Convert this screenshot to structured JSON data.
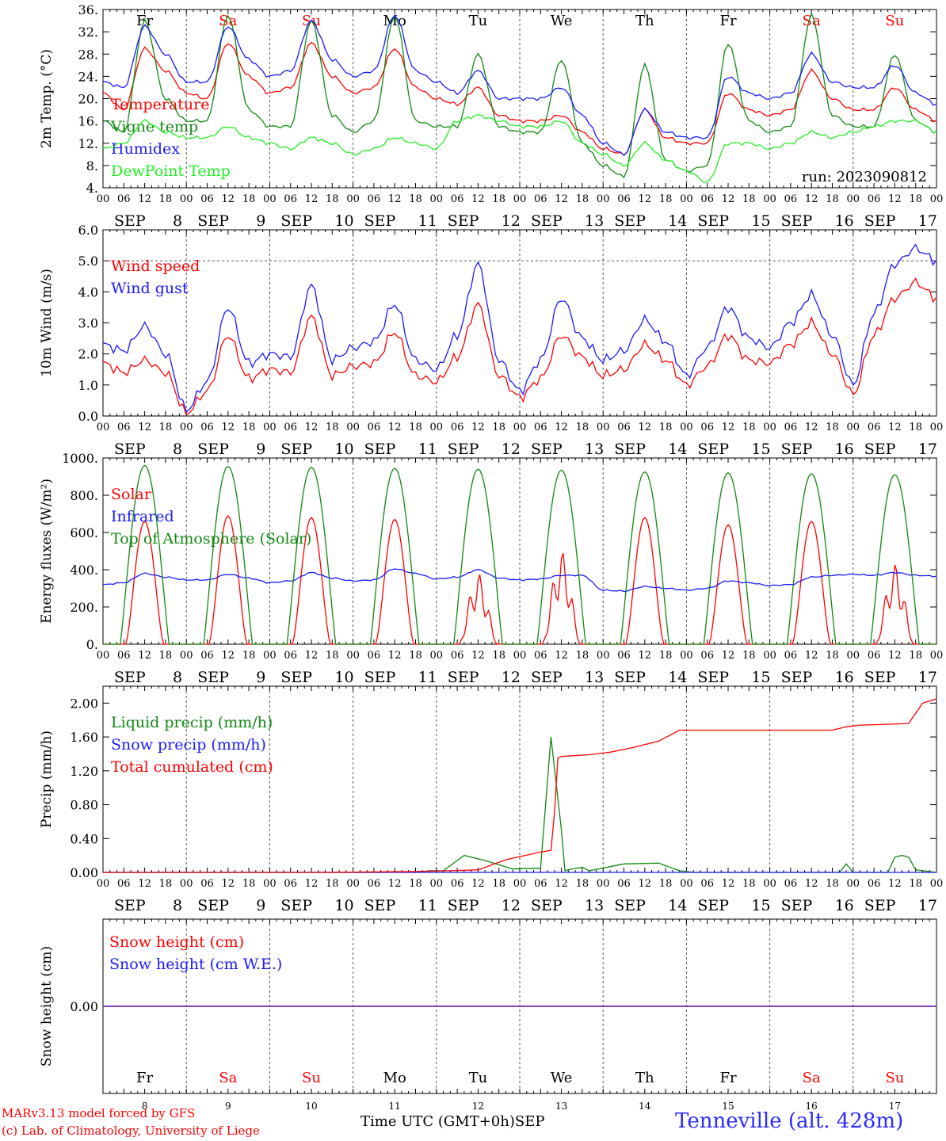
{
  "days": {
    "dates": [
      "8",
      "9",
      "10",
      "11",
      "12",
      "13",
      "14",
      "15",
      "16",
      "17"
    ],
    "month": "SEP",
    "names": [
      "Fr",
      "Sa",
      "Su",
      "Mo",
      "Tu",
      "We",
      "Th",
      "Fr",
      "Sa",
      "Su"
    ],
    "name_colors": [
      "#000000",
      "#ff0000",
      "#ff0000",
      "#000000",
      "#000000",
      "#000000",
      "#000000",
      "#000000",
      "#ff0000",
      "#ff0000"
    ],
    "hour_labels": [
      "00",
      "06",
      "12",
      "18"
    ],
    "end_hour_label": "00"
  },
  "footer": {
    "credit_line1": "MARv3.13 model forced by GFS",
    "credit_line2": "(c) Lab. of Climatology, University of Liege",
    "time_axis_label": "Time UTC (GMT+0h)",
    "month_label": "SEP",
    "station": "Tenneville (alt. 428m)"
  },
  "colors": {
    "red": "#ff0000",
    "dark_green": "#118811",
    "blue": "#1a1aff",
    "light_green": "#22ee22",
    "purple": "#7a2a9a",
    "station_blue": "#2a2aff"
  },
  "chart_data": [
    {
      "type": "line",
      "panel": "temperature",
      "ylabel": "2m Temp. (°C)",
      "ylim": [
        4,
        36
      ],
      "yticks": [
        4,
        8,
        12,
        16,
        20,
        24,
        28,
        32,
        36
      ],
      "ytick_labels": [
        "4.",
        "8.",
        "12.",
        "16.",
        "20.",
        "24.",
        "28.",
        "32.",
        "36."
      ],
      "show_day_names": true,
      "annotation": "run: 2023090812",
      "x_hours": [
        0,
        6,
        12,
        18,
        24,
        30,
        36,
        42,
        48,
        54,
        60,
        66,
        72,
        78,
        84,
        90,
        96,
        102,
        108,
        114,
        120,
        126,
        132,
        138,
        144,
        150,
        156,
        162,
        168,
        174,
        180,
        186,
        192,
        198,
        204,
        210,
        216,
        222,
        228,
        234,
        240
      ],
      "series": [
        {
          "name": "Temperature",
          "color": "#ff0000",
          "values": [
            21,
            18,
            29,
            25,
            21,
            20,
            30,
            24,
            21,
            22,
            30,
            24,
            21,
            22,
            29,
            22,
            20,
            19,
            22,
            17,
            16,
            16,
            17,
            14,
            11,
            10,
            18,
            13,
            12,
            12,
            21,
            18,
            17,
            18,
            25,
            20,
            18,
            18,
            22,
            18,
            16
          ]
        },
        {
          "name": "Vigne temp",
          "color": "#118811",
          "values": [
            16,
            14,
            34,
            20,
            16,
            16,
            35,
            18,
            15,
            15,
            34,
            17,
            14,
            16,
            35,
            16,
            15,
            15,
            28,
            15,
            14,
            14,
            27,
            12,
            8,
            6,
            26,
            9,
            7,
            8,
            30,
            16,
            14,
            15,
            35,
            17,
            15,
            15,
            28,
            16,
            14
          ]
        },
        {
          "name": "Humidex",
          "color": "#1a1aff",
          "values": [
            23,
            22,
            33,
            28,
            23,
            23,
            33,
            27,
            24,
            25,
            34,
            27,
            24,
            25,
            35,
            25,
            23,
            21,
            25,
            20,
            20,
            20,
            22,
            17,
            12,
            10,
            18,
            14,
            13,
            13,
            24,
            21,
            20,
            21,
            28,
            23,
            22,
            22,
            26,
            21,
            19
          ]
        },
        {
          "name": "DewPoint Temp",
          "color": "#22ee22",
          "values": [
            11,
            12,
            16,
            14,
            13,
            13,
            15,
            13,
            12,
            11,
            13,
            12,
            10,
            11,
            13,
            12,
            11,
            16,
            17,
            16,
            15,
            15,
            16,
            12,
            10,
            8,
            12,
            9,
            7,
            5,
            12,
            12,
            11,
            12,
            14,
            13,
            14,
            15,
            16,
            16,
            14
          ]
        }
      ]
    },
    {
      "type": "line",
      "panel": "wind",
      "ylabel": "10m Wind (m/s)",
      "ylim": [
        0,
        6
      ],
      "yticks": [
        0,
        1,
        2,
        3,
        4,
        5,
        6
      ],
      "ytick_labels": [
        "0.0",
        "1.0",
        "2.0",
        "3.0",
        "4.0",
        "5.0",
        "6.0"
      ],
      "dashed_reference": 5.0,
      "show_day_names": false,
      "x_hours": [
        0,
        6,
        12,
        18,
        24,
        30,
        36,
        42,
        48,
        54,
        60,
        66,
        72,
        78,
        84,
        90,
        96,
        102,
        108,
        114,
        120,
        126,
        132,
        138,
        144,
        150,
        156,
        162,
        168,
        174,
        180,
        186,
        192,
        198,
        204,
        210,
        216,
        222,
        228,
        234,
        240
      ],
      "series": [
        {
          "name": "Wind speed",
          "color": "#ff0000",
          "values": [
            1.7,
            1.4,
            1.8,
            1.4,
            0.1,
            0.8,
            2.6,
            1.2,
            1.5,
            1.4,
            3.2,
            1.3,
            1.6,
            1.7,
            2.7,
            1.3,
            1.1,
            1.9,
            3.6,
            1.3,
            0.6,
            1.2,
            2.6,
            1.9,
            1.3,
            1.5,
            2.3,
            1.8,
            1.0,
            1.6,
            2.6,
            1.8,
            1.7,
            2.3,
            3.0,
            2.0,
            0.7,
            2.6,
            3.8,
            4.3,
            3.8
          ]
        },
        {
          "name": "Wind gust",
          "color": "#1a1aff",
          "values": [
            2.3,
            2.1,
            2.9,
            2.0,
            0.2,
            1.1,
            3.5,
            1.7,
            2.0,
            1.9,
            4.2,
            1.8,
            2.2,
            2.4,
            3.6,
            1.8,
            1.5,
            2.6,
            4.9,
            1.8,
            0.8,
            1.8,
            3.8,
            2.5,
            1.8,
            2.1,
            3.1,
            2.4,
            1.3,
            2.2,
            3.5,
            2.5,
            2.2,
            3.0,
            3.9,
            2.6,
            1.0,
            3.3,
            4.9,
            5.4,
            5.0
          ]
        }
      ]
    },
    {
      "type": "line",
      "panel": "energy",
      "ylabel": "Energy fluxes (W/m²)",
      "ylim": [
        0,
        1000
      ],
      "yticks": [
        0,
        200,
        400,
        600,
        800,
        1000
      ],
      "ytick_labels": [
        "0.",
        "200.",
        "400.",
        "600.",
        "800.",
        "1000."
      ],
      "show_day_names": false,
      "series": [
        {
          "name": "Solar",
          "color": "#ff0000",
          "daily_peak": [
            660,
            690,
            680,
            670,
            380,
            500,
            680,
            640,
            660,
            430
          ]
        },
        {
          "name": "Infrared",
          "color": "#1a1aff",
          "x_hours": [
            0,
            6,
            12,
            18,
            24,
            30,
            36,
            42,
            48,
            54,
            60,
            66,
            72,
            78,
            84,
            90,
            96,
            102,
            108,
            114,
            120,
            126,
            132,
            138,
            144,
            150,
            156,
            162,
            168,
            174,
            180,
            186,
            192,
            198,
            204,
            210,
            216,
            222,
            228,
            234,
            240
          ],
          "values": [
            320,
            330,
            380,
            360,
            345,
            345,
            375,
            355,
            330,
            340,
            385,
            355,
            340,
            345,
            405,
            380,
            350,
            360,
            400,
            355,
            345,
            350,
            370,
            370,
            290,
            285,
            310,
            300,
            290,
            300,
            340,
            330,
            315,
            320,
            360,
            370,
            375,
            370,
            385,
            370,
            365
          ]
        },
        {
          "name": "Top of Atmosphere (Solar)",
          "color": "#118811",
          "daily_peak": [
            960,
            955,
            950,
            945,
            940,
            935,
            925,
            920,
            915,
            910
          ]
        }
      ]
    },
    {
      "type": "line",
      "panel": "precip",
      "ylabel": "Precip (mm/h)",
      "ylim": [
        0,
        2.2
      ],
      "yticks": [
        0,
        0.4,
        0.8,
        1.2,
        1.6,
        2.0
      ],
      "ytick_labels": [
        "0.00",
        "0.40",
        "0.80",
        "1.20",
        "1.60",
        "2.00"
      ],
      "show_day_names": false,
      "series": [
        {
          "name": "Liquid precip (mm/h)",
          "color": "#118811",
          "x_hours": [
            0,
            80,
            84,
            90,
            94,
            98,
            104,
            110,
            118,
            126,
            129,
            132,
            133,
            135,
            138,
            140,
            150,
            160,
            166,
            170,
            176,
            200,
            212,
            214,
            216,
            220,
            226,
            228,
            230,
            232,
            234,
            240
          ],
          "values": [
            0,
            0,
            0.01,
            0,
            0.02,
            0.02,
            0.2,
            0.14,
            0.04,
            0.05,
            1.6,
            0.5,
            0.02,
            0.04,
            0.06,
            0.02,
            0.1,
            0.11,
            0.02,
            0,
            0,
            0,
            0,
            0.1,
            0,
            0,
            0,
            0.18,
            0.2,
            0.18,
            0.03,
            0
          ]
        },
        {
          "name": "Snow precip (mm/h)",
          "color": "#1a1aff",
          "x_hours": [
            0,
            240
          ],
          "values": [
            0,
            0
          ]
        },
        {
          "name": "Total cumulated (cm)",
          "color": "#ff0000",
          "x_hours": [
            0,
            64,
            90,
            100,
            108,
            116,
            126,
            129,
            130,
            131,
            132,
            140,
            146,
            152,
            160,
            166,
            180,
            200,
            210,
            214,
            218,
            226,
            232,
            236,
            240
          ],
          "values": [
            0,
            0,
            0.01,
            0.02,
            0.03,
            0.15,
            0.24,
            0.26,
            0.7,
            1.35,
            1.37,
            1.39,
            1.42,
            1.47,
            1.55,
            1.68,
            1.68,
            1.68,
            1.68,
            1.72,
            1.74,
            1.75,
            1.76,
            2.0,
            2.05
          ]
        }
      ]
    },
    {
      "type": "line",
      "panel": "snow",
      "ylabel": "Snow height (cm)",
      "ylim": [
        -1,
        1
      ],
      "yticks": [
        0
      ],
      "ytick_labels": [
        "0.00"
      ],
      "show_day_names": true,
      "series": [
        {
          "name": "Snow height (cm)",
          "color": "#ff0000",
          "x_hours": [
            0,
            240
          ],
          "values": [
            0,
            0
          ]
        },
        {
          "name": "Snow height (cm W.E.)",
          "color": "#1a1aff",
          "x_hours": [
            0,
            240
          ],
          "values": [
            0,
            0
          ]
        }
      ]
    }
  ]
}
